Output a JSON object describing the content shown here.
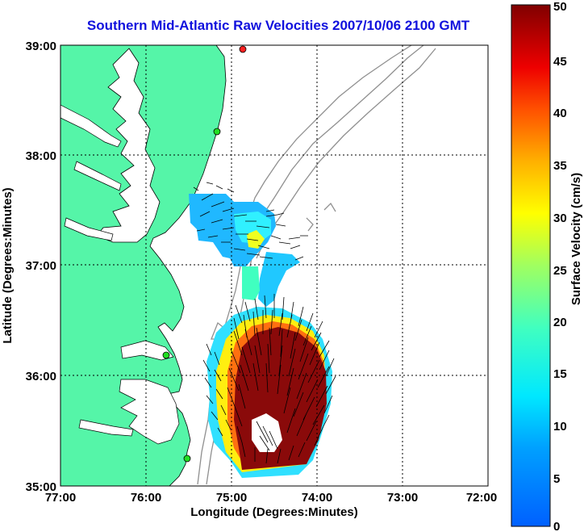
{
  "title": "Southern Mid-Atlantic Raw Velocities 2007/10/06 2100 GMT",
  "chart_data": {
    "type": "heatmap",
    "title": "Southern Mid-Atlantic Raw Velocities 2007/10/06 2100 GMT",
    "xlabel": "Longitude (Degrees:Minutes)",
    "ylabel": "Latitude (Degrees:Minutes)",
    "x_ticks": [
      "77:00",
      "76:00",
      "75:00",
      "74:00",
      "73:00",
      "72:00"
    ],
    "y_ticks": [
      "39:00",
      "38:00",
      "37:00",
      "36:00",
      "35:00"
    ],
    "xlim": [
      -77,
      -72
    ],
    "ylim": [
      35,
      39
    ],
    "grid": true,
    "colorbar": {
      "label": "Surface Velocity (cm/s)",
      "ticks": [
        "0",
        "5",
        "10",
        "15",
        "20",
        "25",
        "30",
        "35",
        "40",
        "45",
        "50"
      ],
      "range": [
        0,
        50
      ],
      "colormap": "jet"
    },
    "station_markers": [
      {
        "lon": -74.82,
        "lat": 38.98,
        "color": "#ff2020"
      },
      {
        "lon": -75.12,
        "lat": 38.27,
        "color": "#22dd22"
      },
      {
        "lon": -75.55,
        "lat": 36.2,
        "color": "#22dd22"
      },
      {
        "lon": -75.5,
        "lat": 35.15,
        "color": "#22dd22"
      }
    ]
  },
  "colors": {
    "land": "#55f5a8",
    "ocean": "#ffffff",
    "bathymetry": "#909090",
    "title": "#1010dd"
  }
}
